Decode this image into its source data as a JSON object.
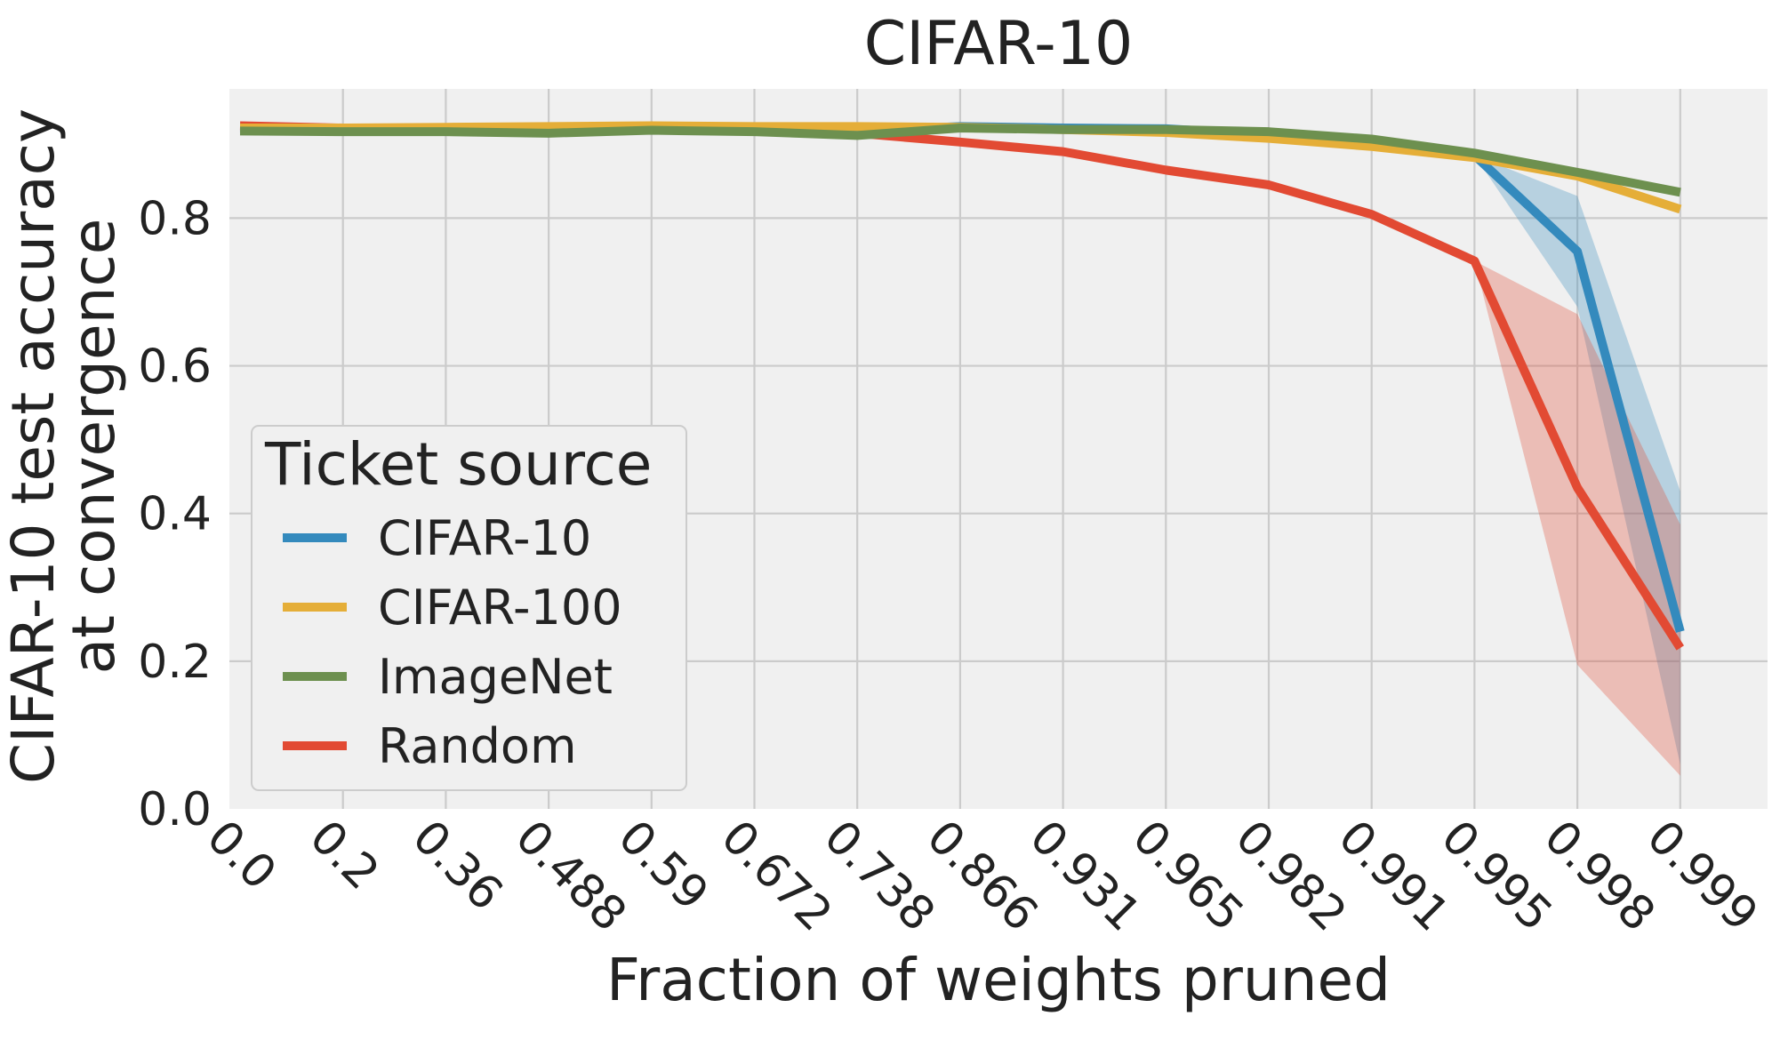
{
  "chart_data": {
    "type": "line",
    "title": "CIFAR-10",
    "xlabel": "Fraction of weights pruned",
    "ylabel_lines": [
      "CIFAR-10 test accuracy",
      "at convergence"
    ],
    "x": [
      "0.0",
      "0.2",
      "0.36",
      "0.488",
      "0.59",
      "0.672",
      "0.738",
      "0.866",
      "0.931",
      "0.965",
      "0.982",
      "0.991",
      "0.995",
      "0.998",
      "0.999"
    ],
    "yticks": [
      "0.0",
      "0.2",
      "0.4",
      "0.6",
      "0.8"
    ],
    "ylim": [
      0.0,
      0.975
    ],
    "grid": true,
    "legend": {
      "title": "Ticket source",
      "placement": "lower-left"
    },
    "series": [
      {
        "name": "CIFAR-10",
        "color": "#348ABD",
        "values": [
          0.922,
          0.92,
          0.921,
          0.92,
          0.921,
          0.92,
          0.918,
          0.924,
          0.922,
          0.921,
          0.913,
          0.903,
          0.885,
          0.755,
          0.24
        ],
        "band_low": [
          0.922,
          0.92,
          0.921,
          0.92,
          0.921,
          0.92,
          0.918,
          0.924,
          0.922,
          0.921,
          0.913,
          0.903,
          0.885,
          0.68,
          0.06
        ],
        "band_high": [
          0.922,
          0.92,
          0.921,
          0.92,
          0.921,
          0.92,
          0.918,
          0.924,
          0.922,
          0.921,
          0.913,
          0.903,
          0.885,
          0.83,
          0.43
        ]
      },
      {
        "name": "CIFAR-100",
        "color": "#E5AE38",
        "values": [
          0.922,
          0.922,
          0.923,
          0.924,
          0.925,
          0.924,
          0.924,
          0.923,
          0.92,
          0.916,
          0.908,
          0.897,
          0.882,
          0.857,
          0.812
        ]
      },
      {
        "name": "ImageNet",
        "color": "#6D904F",
        "values": [
          0.918,
          0.917,
          0.917,
          0.915,
          0.919,
          0.917,
          0.912,
          0.922,
          0.92,
          0.92,
          0.917,
          0.907,
          0.888,
          0.862,
          0.835
        ]
      },
      {
        "name": "Random",
        "color": "#E24A33",
        "values": [
          0.925,
          0.922,
          0.922,
          0.92,
          0.922,
          0.92,
          0.915,
          0.903,
          0.89,
          0.865,
          0.845,
          0.805,
          0.742,
          0.435,
          0.218
        ],
        "band_low": [
          0.925,
          0.922,
          0.922,
          0.92,
          0.922,
          0.92,
          0.915,
          0.903,
          0.89,
          0.865,
          0.845,
          0.8,
          0.742,
          0.195,
          0.045
        ],
        "band_high": [
          0.925,
          0.922,
          0.922,
          0.92,
          0.922,
          0.92,
          0.915,
          0.903,
          0.89,
          0.865,
          0.845,
          0.81,
          0.742,
          0.67,
          0.385
        ]
      }
    ]
  }
}
